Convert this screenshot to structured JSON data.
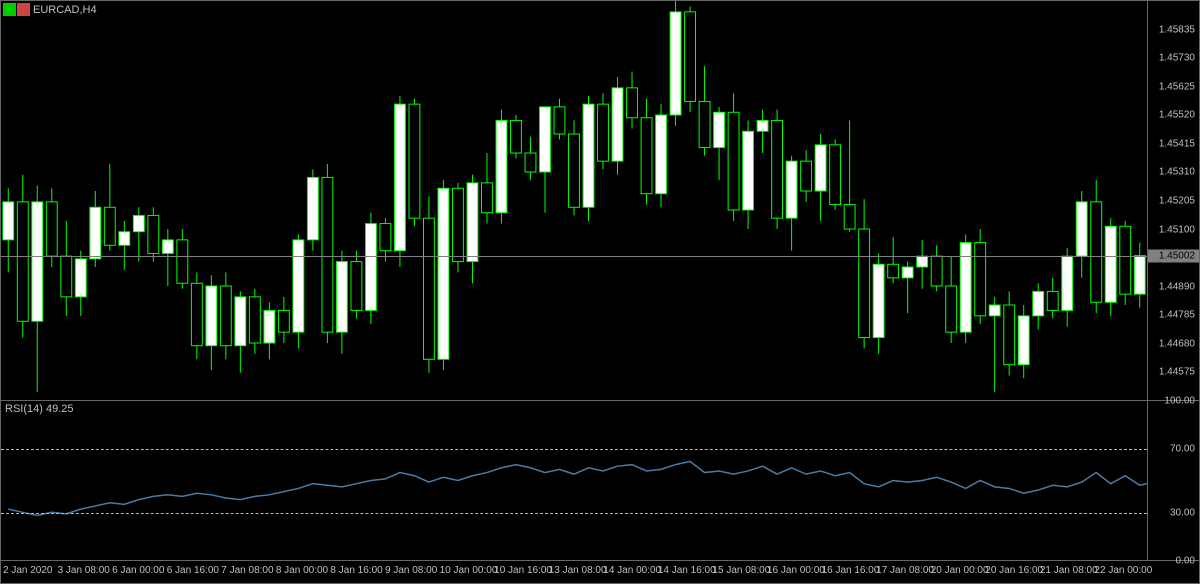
{
  "chart": {
    "symbol": "EURCAD",
    "timeframe": "H4",
    "title": "EURCAD,H4",
    "background_color": "#000000",
    "grid_color": "#666666",
    "text_color": "#c0c0c0",
    "current_price": 1.45002,
    "current_price_label": "1.45002",
    "price_line_color": "#808080",
    "price_axis": {
      "min": 1.4447,
      "max": 1.4594,
      "ticks": [
        1.45835,
        1.4573,
        1.45625,
        1.4552,
        1.45415,
        1.4531,
        1.45205,
        1.451,
        1.44995,
        1.4489,
        1.44785,
        1.4468,
        1.44575
      ],
      "tick_labels": [
        "1.45835",
        "1.45730",
        "1.45625",
        "1.45520",
        "1.45415",
        "1.45310",
        "1.45205",
        "1.45100",
        "1.44995",
        "1.44890",
        "1.44785",
        "1.44680",
        "1.44575"
      ]
    },
    "candles": {
      "bull_outline": "#00ff00",
      "bull_fill": "#ffffff",
      "bear_outline": "#00ff00",
      "bear_fill": "#000000",
      "wick_color": "#00ff00",
      "width": 11,
      "data": [
        {
          "o": 1.4506,
          "h": 1.4525,
          "l": 1.4494,
          "c": 1.452
        },
        {
          "o": 1.452,
          "h": 1.453,
          "l": 1.447,
          "c": 1.4476
        },
        {
          "o": 1.4476,
          "h": 1.4526,
          "l": 1.445,
          "c": 1.452
        },
        {
          "o": 1.452,
          "h": 1.4525,
          "l": 1.4496,
          "c": 1.45
        },
        {
          "o": 1.45,
          "h": 1.4513,
          "l": 1.4478,
          "c": 1.4485
        },
        {
          "o": 1.4485,
          "h": 1.4502,
          "l": 1.4478,
          "c": 1.4499
        },
        {
          "o": 1.4499,
          "h": 1.4524,
          "l": 1.4496,
          "c": 1.4518
        },
        {
          "o": 1.4518,
          "h": 1.4534,
          "l": 1.4502,
          "c": 1.4504
        },
        {
          "o": 1.4504,
          "h": 1.4513,
          "l": 1.4495,
          "c": 1.4509
        },
        {
          "o": 1.4509,
          "h": 1.4518,
          "l": 1.4498,
          "c": 1.4515
        },
        {
          "o": 1.4515,
          "h": 1.4518,
          "l": 1.4498,
          "c": 1.4501
        },
        {
          "o": 1.4501,
          "h": 1.451,
          "l": 1.4489,
          "c": 1.4506
        },
        {
          "o": 1.4506,
          "h": 1.451,
          "l": 1.4488,
          "c": 1.449
        },
        {
          "o": 1.449,
          "h": 1.4494,
          "l": 1.4462,
          "c": 1.4467
        },
        {
          "o": 1.4467,
          "h": 1.4493,
          "l": 1.4458,
          "c": 1.4489
        },
        {
          "o": 1.4489,
          "h": 1.4494,
          "l": 1.4462,
          "c": 1.4467
        },
        {
          "o": 1.4467,
          "h": 1.4487,
          "l": 1.4457,
          "c": 1.4485
        },
        {
          "o": 1.4485,
          "h": 1.4488,
          "l": 1.4464,
          "c": 1.4468
        },
        {
          "o": 1.4468,
          "h": 1.4483,
          "l": 1.4462,
          "c": 1.448
        },
        {
          "o": 1.448,
          "h": 1.4485,
          "l": 1.4468,
          "c": 1.4472
        },
        {
          "o": 1.4472,
          "h": 1.4508,
          "l": 1.4466,
          "c": 1.4506
        },
        {
          "o": 1.4506,
          "h": 1.4532,
          "l": 1.4502,
          "c": 1.4529
        },
        {
          "o": 1.4529,
          "h": 1.4534,
          "l": 1.4468,
          "c": 1.4472
        },
        {
          "o": 1.4472,
          "h": 1.4502,
          "l": 1.4464,
          "c": 1.4498
        },
        {
          "o": 1.4498,
          "h": 1.4502,
          "l": 1.4477,
          "c": 1.448
        },
        {
          "o": 1.448,
          "h": 1.4516,
          "l": 1.4475,
          "c": 1.4512
        },
        {
          "o": 1.4512,
          "h": 1.4514,
          "l": 1.4498,
          "c": 1.4502
        },
        {
          "o": 1.4502,
          "h": 1.4559,
          "l": 1.4496,
          "c": 1.4556
        },
        {
          "o": 1.4556,
          "h": 1.4558,
          "l": 1.4511,
          "c": 1.4514
        },
        {
          "o": 1.4514,
          "h": 1.4522,
          "l": 1.4457,
          "c": 1.4462
        },
        {
          "o": 1.4462,
          "h": 1.4528,
          "l": 1.4458,
          "c": 1.4525
        },
        {
          "o": 1.4525,
          "h": 1.4527,
          "l": 1.4494,
          "c": 1.4498
        },
        {
          "o": 1.4498,
          "h": 1.453,
          "l": 1.449,
          "c": 1.4527
        },
        {
          "o": 1.4527,
          "h": 1.4538,
          "l": 1.4512,
          "c": 1.4516
        },
        {
          "o": 1.4516,
          "h": 1.4554,
          "l": 1.4512,
          "c": 1.455
        },
        {
          "o": 1.455,
          "h": 1.4552,
          "l": 1.4536,
          "c": 1.4538
        },
        {
          "o": 1.4538,
          "h": 1.4544,
          "l": 1.4528,
          "c": 1.4531
        },
        {
          "o": 1.4531,
          "h": 1.4555,
          "l": 1.4516,
          "c": 1.4555
        },
        {
          "o": 1.4555,
          "h": 1.4558,
          "l": 1.4543,
          "c": 1.4545
        },
        {
          "o": 1.4545,
          "h": 1.455,
          "l": 1.4515,
          "c": 1.4518
        },
        {
          "o": 1.4518,
          "h": 1.4559,
          "l": 1.4513,
          "c": 1.4556
        },
        {
          "o": 1.4556,
          "h": 1.456,
          "l": 1.4532,
          "c": 1.4535
        },
        {
          "o": 1.4535,
          "h": 1.4566,
          "l": 1.453,
          "c": 1.4562
        },
        {
          "o": 1.4562,
          "h": 1.4568,
          "l": 1.4547,
          "c": 1.4551
        },
        {
          "o": 1.4551,
          "h": 1.4558,
          "l": 1.4519,
          "c": 1.4523
        },
        {
          "o": 1.4523,
          "h": 1.4556,
          "l": 1.4518,
          "c": 1.4552
        },
        {
          "o": 1.4552,
          "h": 1.4594,
          "l": 1.4548,
          "c": 1.459
        },
        {
          "o": 1.459,
          "h": 1.4592,
          "l": 1.4553,
          "c": 1.4557
        },
        {
          "o": 1.4557,
          "h": 1.457,
          "l": 1.4537,
          "c": 1.454
        },
        {
          "o": 1.454,
          "h": 1.4555,
          "l": 1.4528,
          "c": 1.4553
        },
        {
          "o": 1.4553,
          "h": 1.456,
          "l": 1.4513,
          "c": 1.4517
        },
        {
          "o": 1.4517,
          "h": 1.455,
          "l": 1.451,
          "c": 1.4546
        },
        {
          "o": 1.4546,
          "h": 1.4554,
          "l": 1.4538,
          "c": 1.455
        },
        {
          "o": 1.455,
          "h": 1.4554,
          "l": 1.451,
          "c": 1.4514
        },
        {
          "o": 1.4514,
          "h": 1.4537,
          "l": 1.4502,
          "c": 1.4535
        },
        {
          "o": 1.4535,
          "h": 1.4539,
          "l": 1.452,
          "c": 1.4524
        },
        {
          "o": 1.4524,
          "h": 1.4545,
          "l": 1.4513,
          "c": 1.4541
        },
        {
          "o": 1.4541,
          "h": 1.4543,
          "l": 1.4517,
          "c": 1.4519
        },
        {
          "o": 1.4519,
          "h": 1.455,
          "l": 1.4509,
          "c": 1.451
        },
        {
          "o": 1.451,
          "h": 1.4521,
          "l": 1.4466,
          "c": 1.447
        },
        {
          "o": 1.447,
          "h": 1.4501,
          "l": 1.4464,
          "c": 1.4497
        },
        {
          "o": 1.4497,
          "h": 1.4507,
          "l": 1.449,
          "c": 1.4492
        },
        {
          "o": 1.4492,
          "h": 1.4498,
          "l": 1.4479,
          "c": 1.4496
        },
        {
          "o": 1.4496,
          "h": 1.4506,
          "l": 1.4488,
          "c": 1.45
        },
        {
          "o": 1.45,
          "h": 1.4504,
          "l": 1.4487,
          "c": 1.4489
        },
        {
          "o": 1.4489,
          "h": 1.45,
          "l": 1.4468,
          "c": 1.4472
        },
        {
          "o": 1.4472,
          "h": 1.4508,
          "l": 1.4468,
          "c": 1.4505
        },
        {
          "o": 1.4505,
          "h": 1.451,
          "l": 1.4475,
          "c": 1.4478
        },
        {
          "o": 1.4478,
          "h": 1.4485,
          "l": 1.445,
          "c": 1.4482
        },
        {
          "o": 1.4482,
          "h": 1.4487,
          "l": 1.4456,
          "c": 1.446
        },
        {
          "o": 1.446,
          "h": 1.4482,
          "l": 1.4455,
          "c": 1.4478
        },
        {
          "o": 1.4478,
          "h": 1.449,
          "l": 1.4473,
          "c": 1.4487
        },
        {
          "o": 1.4487,
          "h": 1.4492,
          "l": 1.4477,
          "c": 1.448
        },
        {
          "o": 1.448,
          "h": 1.4503,
          "l": 1.4474,
          "c": 1.45
        },
        {
          "o": 1.45,
          "h": 1.4524,
          "l": 1.4492,
          "c": 1.452
        },
        {
          "o": 1.452,
          "h": 1.4528,
          "l": 1.4479,
          "c": 1.4483
        },
        {
          "o": 1.4483,
          "h": 1.4514,
          "l": 1.4478,
          "c": 1.4511
        },
        {
          "o": 1.4511,
          "h": 1.4513,
          "l": 1.4482,
          "c": 1.4486
        },
        {
          "o": 1.4486,
          "h": 1.4505,
          "l": 1.4481,
          "c": 1.45002
        }
      ]
    },
    "time_axis": {
      "labels": [
        "2 Jan 2020",
        "3 Jan 08:00",
        "6 Jan 00:00",
        "6 Jan 16:00",
        "7 Jan 08:00",
        "8 Jan 00:00",
        "8 Jan 16:00",
        "9 Jan 08:00",
        "10 Jan 00:00",
        "10 Jan 16:00",
        "13 Jan 08:00",
        "14 Jan 00:00",
        "14 Jan 16:00",
        "15 Jan 08:00",
        "16 Jan 00:00",
        "16 Jan 16:00",
        "17 Jan 08:00",
        "20 Jan 00:00",
        "20 Jan 16:00",
        "21 Jan 08:00",
        "22 Jan 00:00"
      ]
    }
  },
  "rsi": {
    "label": "RSI(14) 49.25",
    "period": 14,
    "current_value": 49.25,
    "line_color": "#4a7ba6",
    "level_line_color": "#b8b8b8",
    "axis": {
      "min": 0,
      "max": 100,
      "ticks": [
        100,
        70,
        30,
        0
      ],
      "tick_labels": [
        "100.00",
        "70.00",
        "30.00",
        "0.00"
      ],
      "level_lines": [
        70,
        30
      ]
    },
    "values": [
      32,
      30,
      28,
      30,
      29,
      32,
      34,
      36,
      35,
      38,
      40,
      41,
      40,
      42,
      41,
      39,
      38,
      40,
      41,
      43,
      45,
      48,
      47,
      46,
      48,
      50,
      51,
      55,
      53,
      49,
      52,
      50,
      53,
      55,
      58,
      60,
      58,
      55,
      57,
      54,
      58,
      56,
      59,
      60,
      56,
      57,
      60,
      62,
      55,
      56,
      54,
      56,
      59,
      54,
      58,
      54,
      56,
      53,
      55,
      48,
      46,
      50,
      49,
      50,
      52,
      49,
      45,
      50,
      46,
      45,
      42,
      44,
      47,
      46,
      49,
      55,
      48,
      53,
      47,
      49.25
    ]
  }
}
